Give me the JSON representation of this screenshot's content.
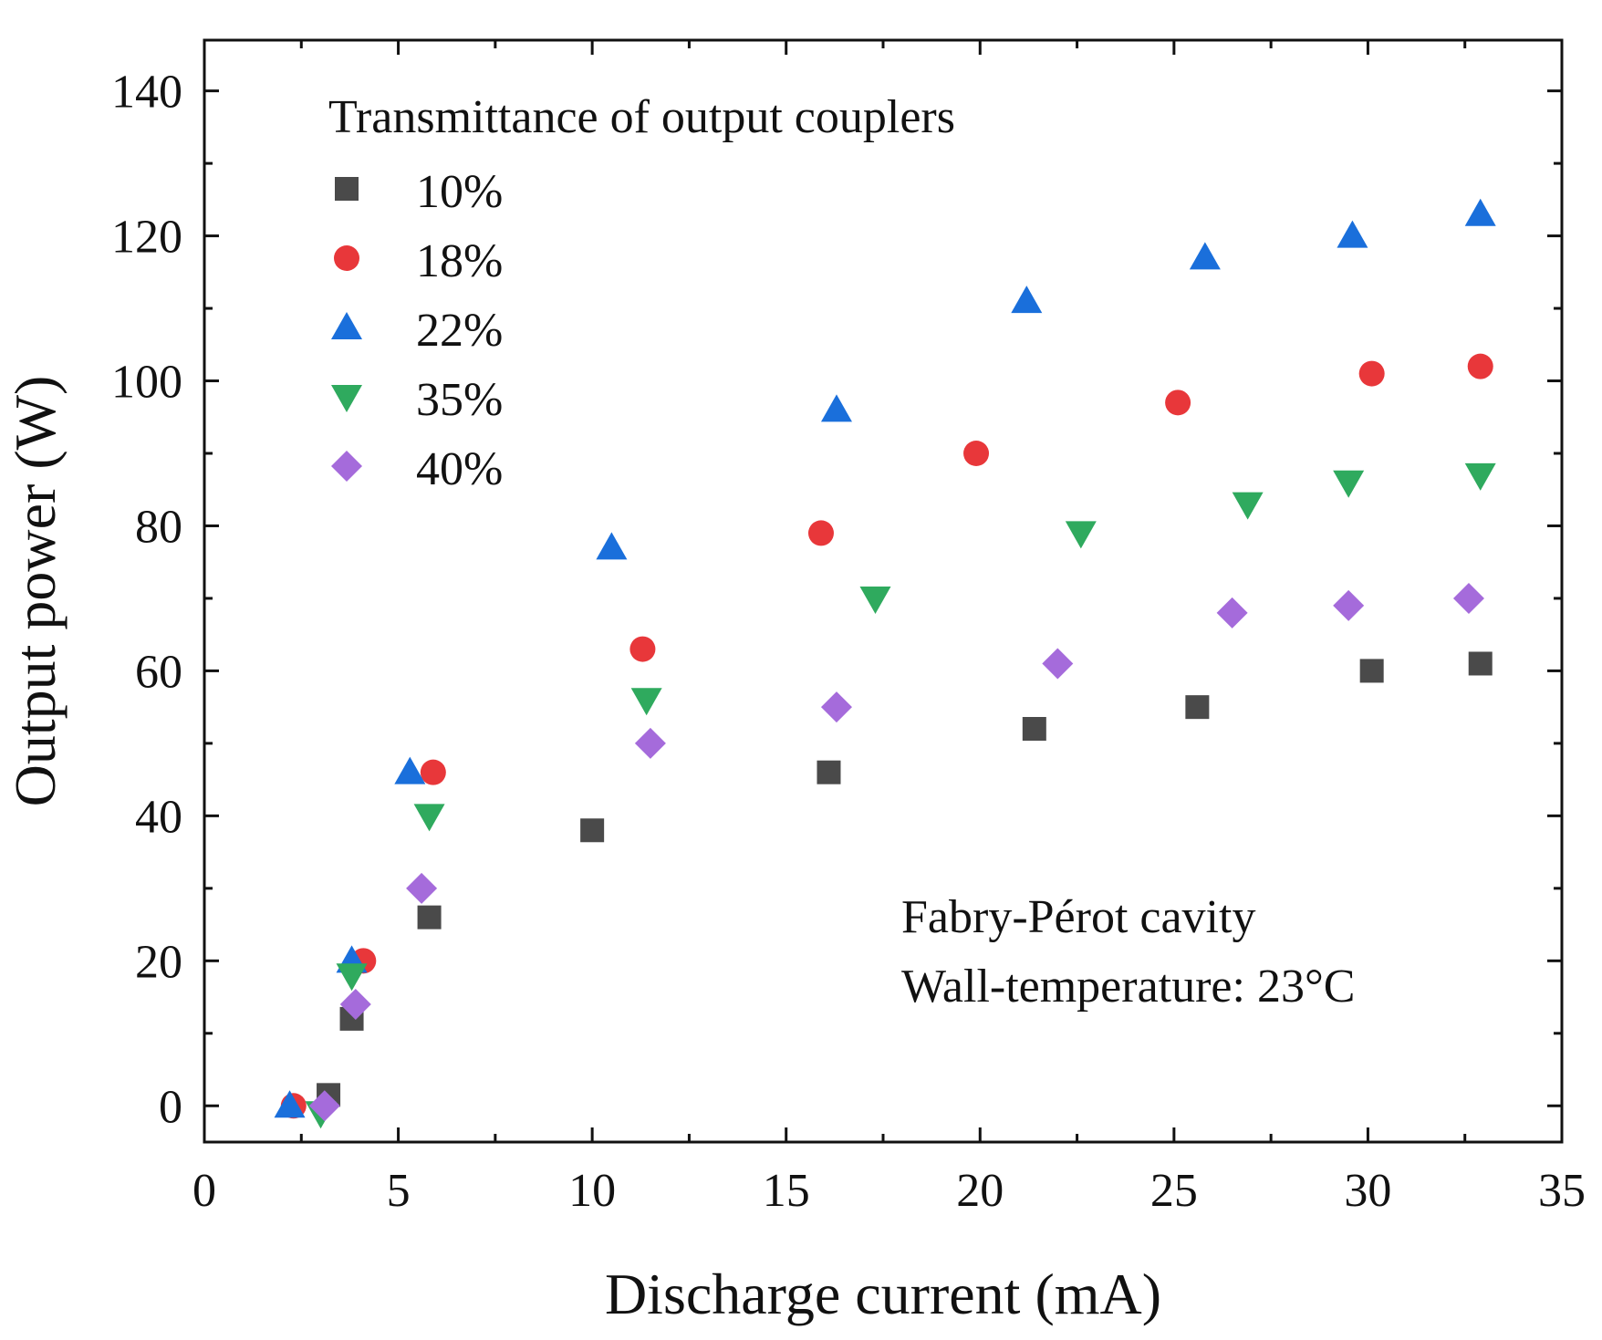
{
  "chart_data": {
    "type": "scatter",
    "title": "",
    "xlabel": "Discharge current (mA)",
    "ylabel": "Output power (W)",
    "xlim": [
      0,
      35
    ],
    "ylim": [
      -5,
      147
    ],
    "xticks": [
      0,
      5,
      10,
      15,
      20,
      25,
      30,
      35
    ],
    "yticks": [
      0,
      20,
      40,
      60,
      80,
      100,
      120,
      140
    ],
    "grid": false,
    "legend_title": "Transmittance of output couplers",
    "legend_position": "top-left",
    "annotations": [
      "Fabry-Pérot  cavity",
      "Wall-temperature: 23°C"
    ],
    "series": [
      {
        "name": "10%",
        "marker": "square",
        "color": "#4a4a4a",
        "x": [
          3.2,
          3.8,
          5.8,
          10.0,
          16.1,
          21.4,
          25.6,
          30.1,
          32.9
        ],
        "y": [
          1.5,
          12,
          26,
          38,
          46,
          52,
          55,
          60,
          61
        ]
      },
      {
        "name": "18%",
        "marker": "circle",
        "color": "#e8373a",
        "x": [
          2.3,
          4.1,
          5.9,
          11.3,
          15.9,
          19.9,
          25.1,
          30.1,
          32.9
        ],
        "y": [
          0,
          20,
          46,
          63,
          79,
          90,
          97,
          101,
          102
        ]
      },
      {
        "name": "22%",
        "marker": "triangle-up",
        "color": "#1a6fdb",
        "x": [
          2.2,
          3.8,
          5.3,
          10.5,
          16.3,
          21.2,
          25.8,
          29.6,
          32.9
        ],
        "y": [
          0,
          20,
          46,
          77,
          96,
          111,
          117,
          120,
          123
        ]
      },
      {
        "name": "35%",
        "marker": "triangle-down",
        "color": "#2faa5e",
        "x": [
          3.0,
          3.8,
          5.8,
          11.4,
          17.3,
          22.6,
          26.9,
          29.5,
          32.9
        ],
        "y": [
          -1,
          18,
          40,
          56,
          70,
          79,
          83,
          86,
          87
        ]
      },
      {
        "name": "40%",
        "marker": "diamond",
        "color": "#a56bdb",
        "x": [
          3.1,
          3.9,
          5.6,
          11.5,
          16.3,
          22.0,
          26.5,
          29.5,
          32.6
        ],
        "y": [
          0,
          14,
          30,
          50,
          55,
          61,
          68,
          69,
          70
        ]
      }
    ]
  }
}
